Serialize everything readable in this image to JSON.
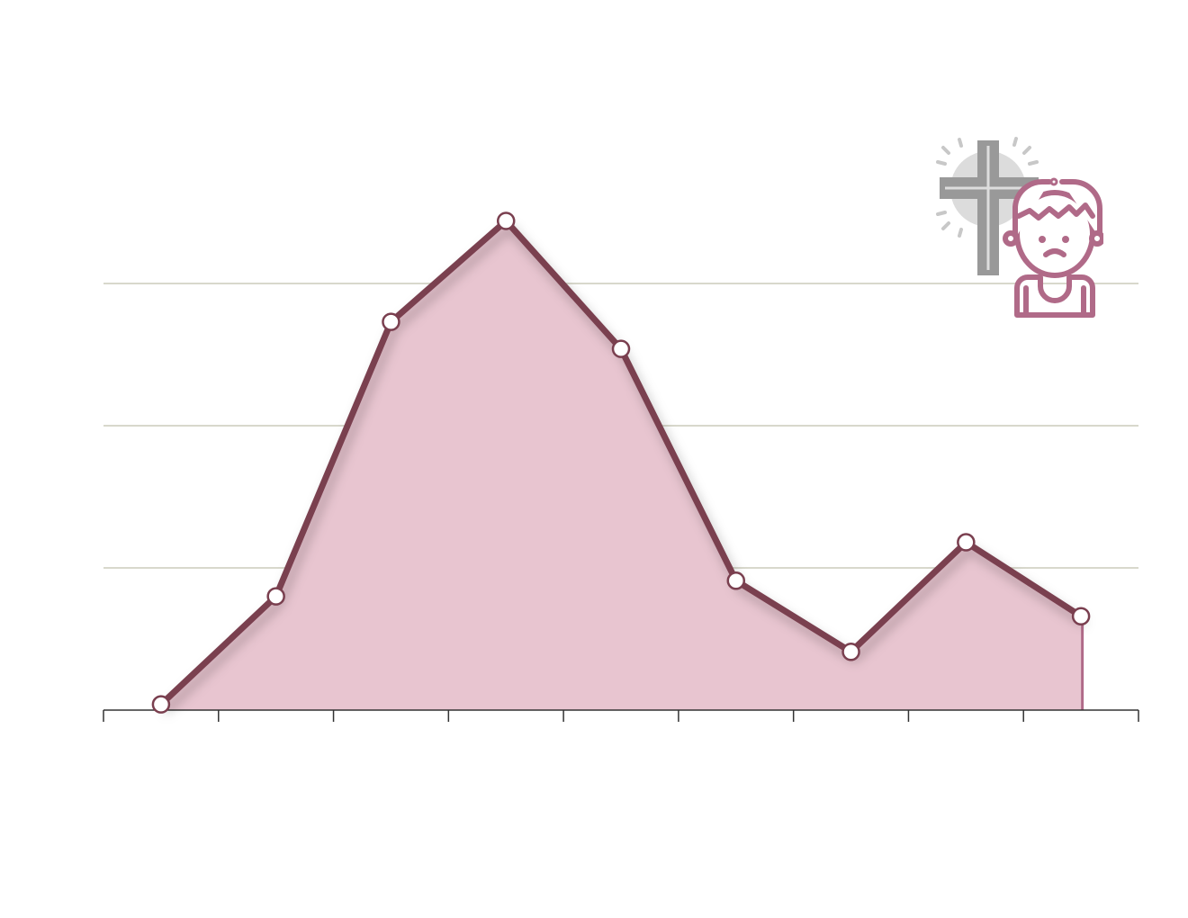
{
  "chart_data": {
    "type": "area",
    "title": "",
    "xlabel": "",
    "ylabel": "",
    "x": [
      1,
      2,
      3,
      4,
      5,
      6,
      7,
      8,
      9
    ],
    "values": [
      0.04,
      0.8,
      2.73,
      3.44,
      2.54,
      0.91,
      0.41,
      1.18,
      0.66
    ],
    "ylim": [
      0,
      5
    ],
    "xlim": [
      0.5,
      9.5
    ],
    "gridlines_y": [
      1,
      2,
      3
    ],
    "grid": true,
    "legend": "none",
    "highlight_range": [
      9,
      9.5
    ],
    "colors": {
      "fill": "#e8c5d0",
      "line": "#7a3f4f",
      "highlight": "#b06a88",
      "grid": "#d8d8cc",
      "marker_fill": "#ffffff",
      "icon_person": "#b06a88",
      "icon_cross": "#999999"
    },
    "icon": "grieving-child-with-cross-icon"
  }
}
